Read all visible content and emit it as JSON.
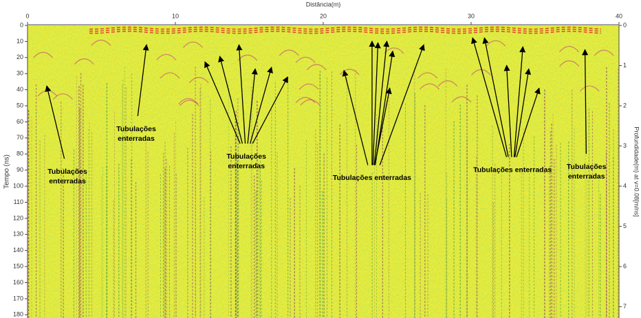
{
  "chart_data": {
    "type": "radargram",
    "xlabel": "Distância(m)",
    "ylabel": "Tempo (ns)",
    "y2label": "Profundidade(m) at v=0.08[m/ns]",
    "xlim": [
      0,
      40
    ],
    "xticks": [
      0,
      10,
      20,
      30,
      40
    ],
    "ylim": [
      0,
      182
    ],
    "yticks": [
      0,
      10,
      20,
      30,
      40,
      50,
      60,
      70,
      80,
      90,
      100,
      110,
      120,
      130,
      140,
      150,
      160,
      170,
      180
    ],
    "y2lim": [
      0,
      7.28
    ],
    "y2ticks": [
      0,
      1,
      2,
      3,
      4,
      5,
      6,
      7
    ],
    "annotation_color": "#000000",
    "annotations": [
      {
        "lines": [
          "Tubulações",
          "enterradas"
        ],
        "x": 2.7,
        "y": 94,
        "targets": [
          [
            1.3,
            37.6
          ]
        ]
      },
      {
        "lines": [
          "Tubulações",
          "enterradas"
        ],
        "x": 7.35,
        "y": 67.5,
        "targets": [
          [
            8.05,
            12
          ]
        ]
      },
      {
        "lines": [
          "Tubulações",
          "enterradas"
        ],
        "x": 14.8,
        "y": 84.6,
        "targets": [
          [
            12.0,
            22.6
          ],
          [
            13.0,
            19.2
          ],
          [
            14.3,
            12
          ],
          [
            15.4,
            27
          ],
          [
            16.5,
            26
          ],
          [
            17.6,
            32
          ]
        ]
      },
      {
        "lines": [
          "Tubulações enterradas"
        ],
        "x": 23.3,
        "y": 95,
        "targets": [
          [
            21.4,
            28
          ],
          [
            23.3,
            9.8
          ],
          [
            23.7,
            10.7
          ],
          [
            24.3,
            9.8
          ],
          [
            24.7,
            16
          ],
          [
            24.5,
            39
          ],
          [
            26.8,
            12
          ]
        ]
      },
      {
        "lines": [
          "Tubulações  enterradas"
        ],
        "x": 32.8,
        "y": 90,
        "targets": [
          [
            30.1,
            7.7
          ],
          [
            30.9,
            7.7
          ],
          [
            32.4,
            24.8
          ],
          [
            33.5,
            13.2
          ],
          [
            33.9,
            27
          ],
          [
            34.6,
            39
          ]
        ]
      },
      {
        "lines": [
          "Tubulações",
          "enterradas"
        ],
        "x": 37.8,
        "y": 91,
        "targets": [
          [
            37.7,
            15
          ]
        ]
      }
    ]
  }
}
